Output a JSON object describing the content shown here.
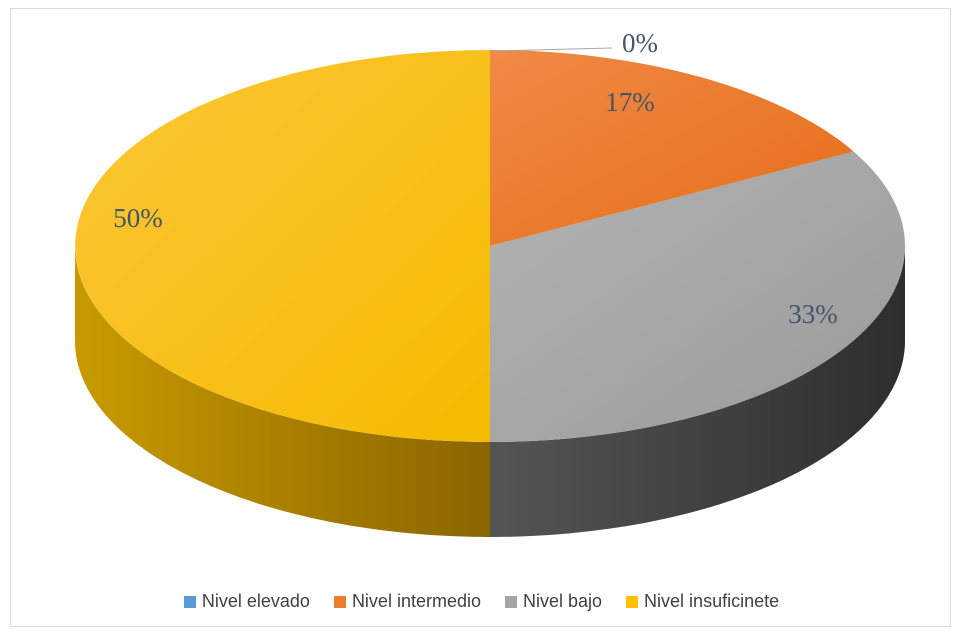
{
  "chart_data": {
    "type": "pie",
    "style": "3d",
    "title": "",
    "categories": [
      "Nivel elevado",
      "Nivel intermedio",
      "Nivel bajo",
      "Nivel insuficinete"
    ],
    "values": [
      0,
      17,
      33,
      50
    ],
    "data_labels": [
      "0%",
      "17%",
      "33%",
      "50%"
    ],
    "colors": [
      "#5b9bd5",
      "#ed7d31",
      "#a5a5a5",
      "#ffc000"
    ],
    "legend_position": "bottom"
  }
}
